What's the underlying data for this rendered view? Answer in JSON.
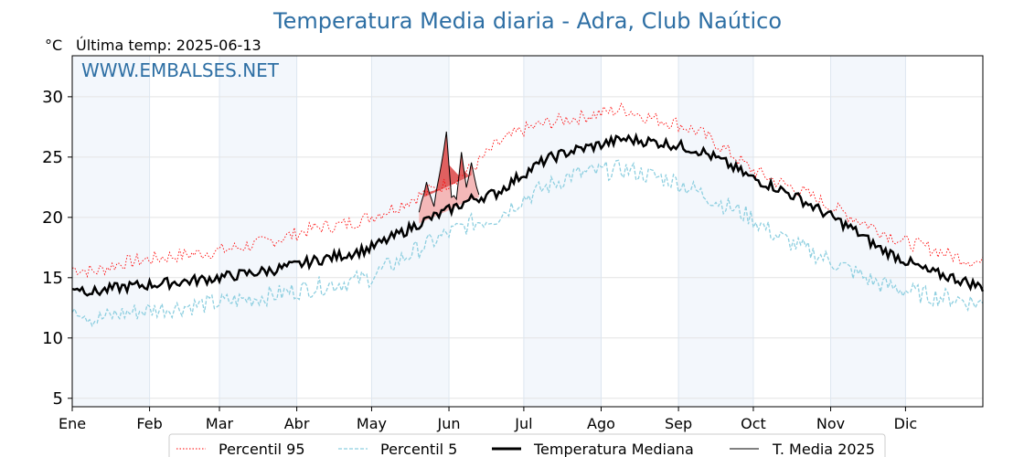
{
  "title": "Temperatura Media diaria - Adra, Club Naútico",
  "unit": "°C",
  "last_temp": "Última temp: 2025-06-13",
  "watermark": "WWW.EMBALSES.NET",
  "colors": {
    "p95": "#ff0000",
    "p5": "#8ecfe0",
    "median": "#000000",
    "media2025": "#000000",
    "above_fill": "#e06060",
    "below_fill": "#f4b8b8",
    "band": "#f3f7fc",
    "title": "#2e6fa4"
  },
  "chart_data": {
    "type": "line",
    "title": "Temperatura Media diaria - Adra, Club Naútico",
    "ylabel": "°C",
    "xlim": [
      1,
      366
    ],
    "ylim": [
      4.3,
      33.4
    ],
    "yticks": [
      5,
      10,
      15,
      20,
      25,
      30
    ],
    "grid": true,
    "legend_position": "bottom",
    "months": [
      "Ene",
      "Feb",
      "Mar",
      "Abr",
      "May",
      "Jun",
      "Jul",
      "Ago",
      "Sep",
      "Oct",
      "Nov",
      "Dic"
    ],
    "month_start_days": [
      1,
      32,
      60,
      91,
      121,
      152,
      182,
      213,
      244,
      274,
      305,
      335
    ],
    "x_day": [
      1,
      10,
      20,
      31,
      41,
      51,
      59,
      70,
      80,
      90,
      100,
      110,
      120,
      130,
      140,
      151,
      161,
      171,
      181,
      191,
      201,
      212,
      222,
      232,
      243,
      253,
      263,
      273,
      283,
      293,
      304,
      314,
      324,
      334,
      344,
      354,
      366
    ],
    "series": [
      {
        "name": "Percentil 95",
        "style": "dotted",
        "values": [
          15.8,
          15.5,
          16.2,
          16.5,
          16.8,
          17.0,
          17.2,
          17.6,
          18.0,
          18.6,
          19.2,
          19.4,
          20.0,
          20.8,
          21.8,
          22.8,
          24.0,
          26.0,
          27.2,
          27.8,
          28.2,
          28.6,
          29.0,
          28.3,
          27.8,
          27.0,
          25.6,
          24.0,
          23.0,
          22.2,
          21.0,
          20.0,
          19.0,
          18.0,
          17.5,
          16.8,
          16.2
        ]
      },
      {
        "name": "Percentil 5",
        "style": "dashed",
        "values": [
          12.8,
          11.5,
          12.0,
          12.3,
          12.5,
          12.7,
          12.9,
          13.2,
          13.5,
          13.9,
          14.3,
          14.6,
          15.0,
          16.2,
          17.4,
          18.6,
          19.5,
          20.0,
          21.5,
          22.5,
          23.5,
          23.8,
          24.0,
          23.5,
          23.0,
          22.0,
          21.0,
          20.0,
          18.5,
          17.5,
          16.5,
          15.5,
          14.5,
          14.0,
          13.5,
          13.3,
          12.8
        ]
      },
      {
        "name": "Temperatura Mediana",
        "style": "thick",
        "values": [
          14.3,
          13.8,
          14.2,
          14.4,
          14.6,
          14.8,
          15.0,
          15.3,
          15.6,
          16.0,
          16.5,
          16.9,
          17.4,
          18.4,
          19.5,
          20.5,
          21.5,
          22.0,
          23.5,
          24.8,
          25.5,
          26.0,
          26.5,
          26.3,
          26.0,
          25.5,
          24.5,
          23.3,
          22.5,
          21.5,
          20.2,
          19.0,
          17.5,
          16.5,
          15.5,
          15.0,
          14.2
        ]
      },
      {
        "name": "T. Media 2025",
        "style": "thin",
        "x_day": [
          140,
          143,
          146,
          149,
          151,
          153,
          155,
          157,
          159,
          161,
          163,
          164
        ],
        "values": [
          20.5,
          22.8,
          21.0,
          24.5,
          27.2,
          21.8,
          21.5,
          25.5,
          22.5,
          24.5,
          22.5,
          22.0
        ]
      }
    ]
  }
}
